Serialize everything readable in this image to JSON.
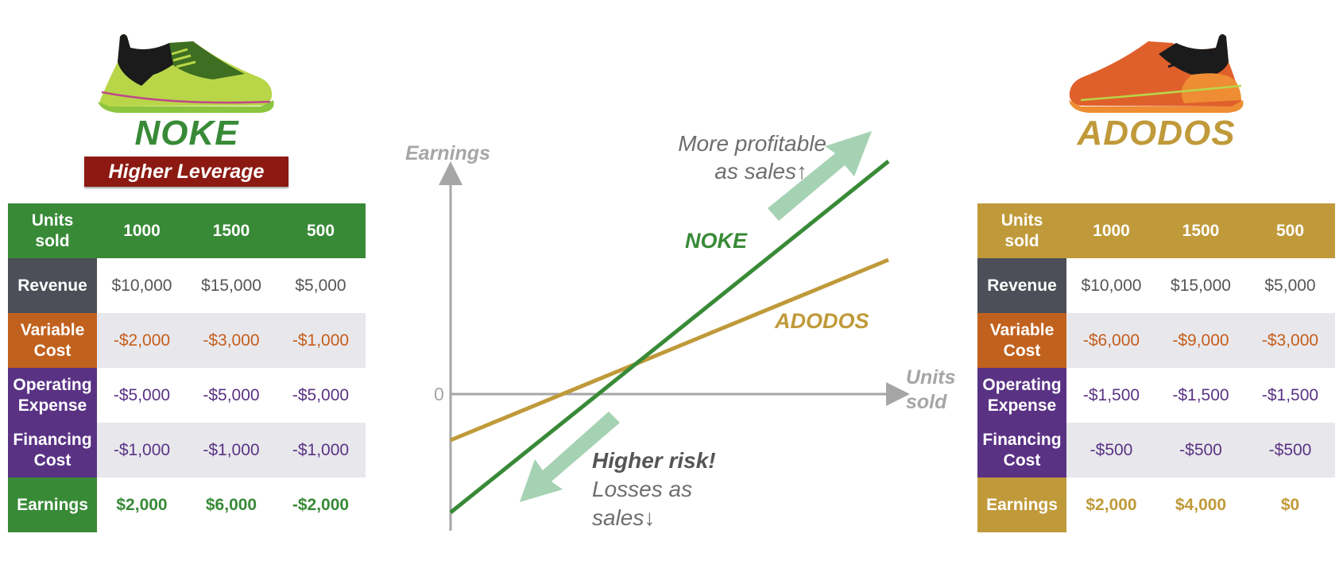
{
  "left": {
    "brand": "NOKE",
    "badge": "Higher Leverage",
    "color": "#388a37",
    "header": [
      "Units sold",
      "1000",
      "1500",
      "500"
    ],
    "rows": [
      {
        "label": "Revenue",
        "values": [
          "$10,000",
          "$15,000",
          "$5,000"
        ]
      },
      {
        "label": "Variable Cost",
        "values": [
          "-$2,000",
          "-$3,000",
          "-$1,000"
        ]
      },
      {
        "label": "Operating Expense",
        "values": [
          "-$5,000",
          "-$5,000",
          "-$5,000"
        ]
      },
      {
        "label": "Financing Cost",
        "values": [
          "-$1,000",
          "-$1,000",
          "-$1,000"
        ]
      },
      {
        "label": "Earnings",
        "values": [
          "$2,000",
          "$6,000",
          "-$2,000"
        ]
      }
    ]
  },
  "right": {
    "brand": "ADODOS",
    "color": "#c09a3a",
    "header": [
      "Units sold",
      "1000",
      "1500",
      "500"
    ],
    "rows": [
      {
        "label": "Revenue",
        "values": [
          "$10,000",
          "$15,000",
          "$5,000"
        ]
      },
      {
        "label": "Variable Cost",
        "values": [
          "-$6,000",
          "-$9,000",
          "-$3,000"
        ]
      },
      {
        "label": "Operating Expense",
        "values": [
          "-$1,500",
          "-$1,500",
          "-$1,500"
        ]
      },
      {
        "label": "Financing Cost",
        "values": [
          "-$500",
          "-$500",
          "-$500"
        ]
      },
      {
        "label": "Earnings",
        "values": [
          "$2,000",
          "$4,000",
          "$0"
        ]
      }
    ]
  },
  "chart": {
    "y_axis_label": "Earnings",
    "x_axis_label": "Units sold",
    "zero_label": "0",
    "noke_label": "NOKE",
    "adodos_label": "ADODOS",
    "profit_note_line1": "More profitable",
    "profit_note_line2": "as sales↑",
    "risk_title": "Higher risk!",
    "risk_line1": "Losses as",
    "risk_line2": "sales↓",
    "arrow_color": "#a6d2b4",
    "axis_color": "#a6a6a6"
  }
}
